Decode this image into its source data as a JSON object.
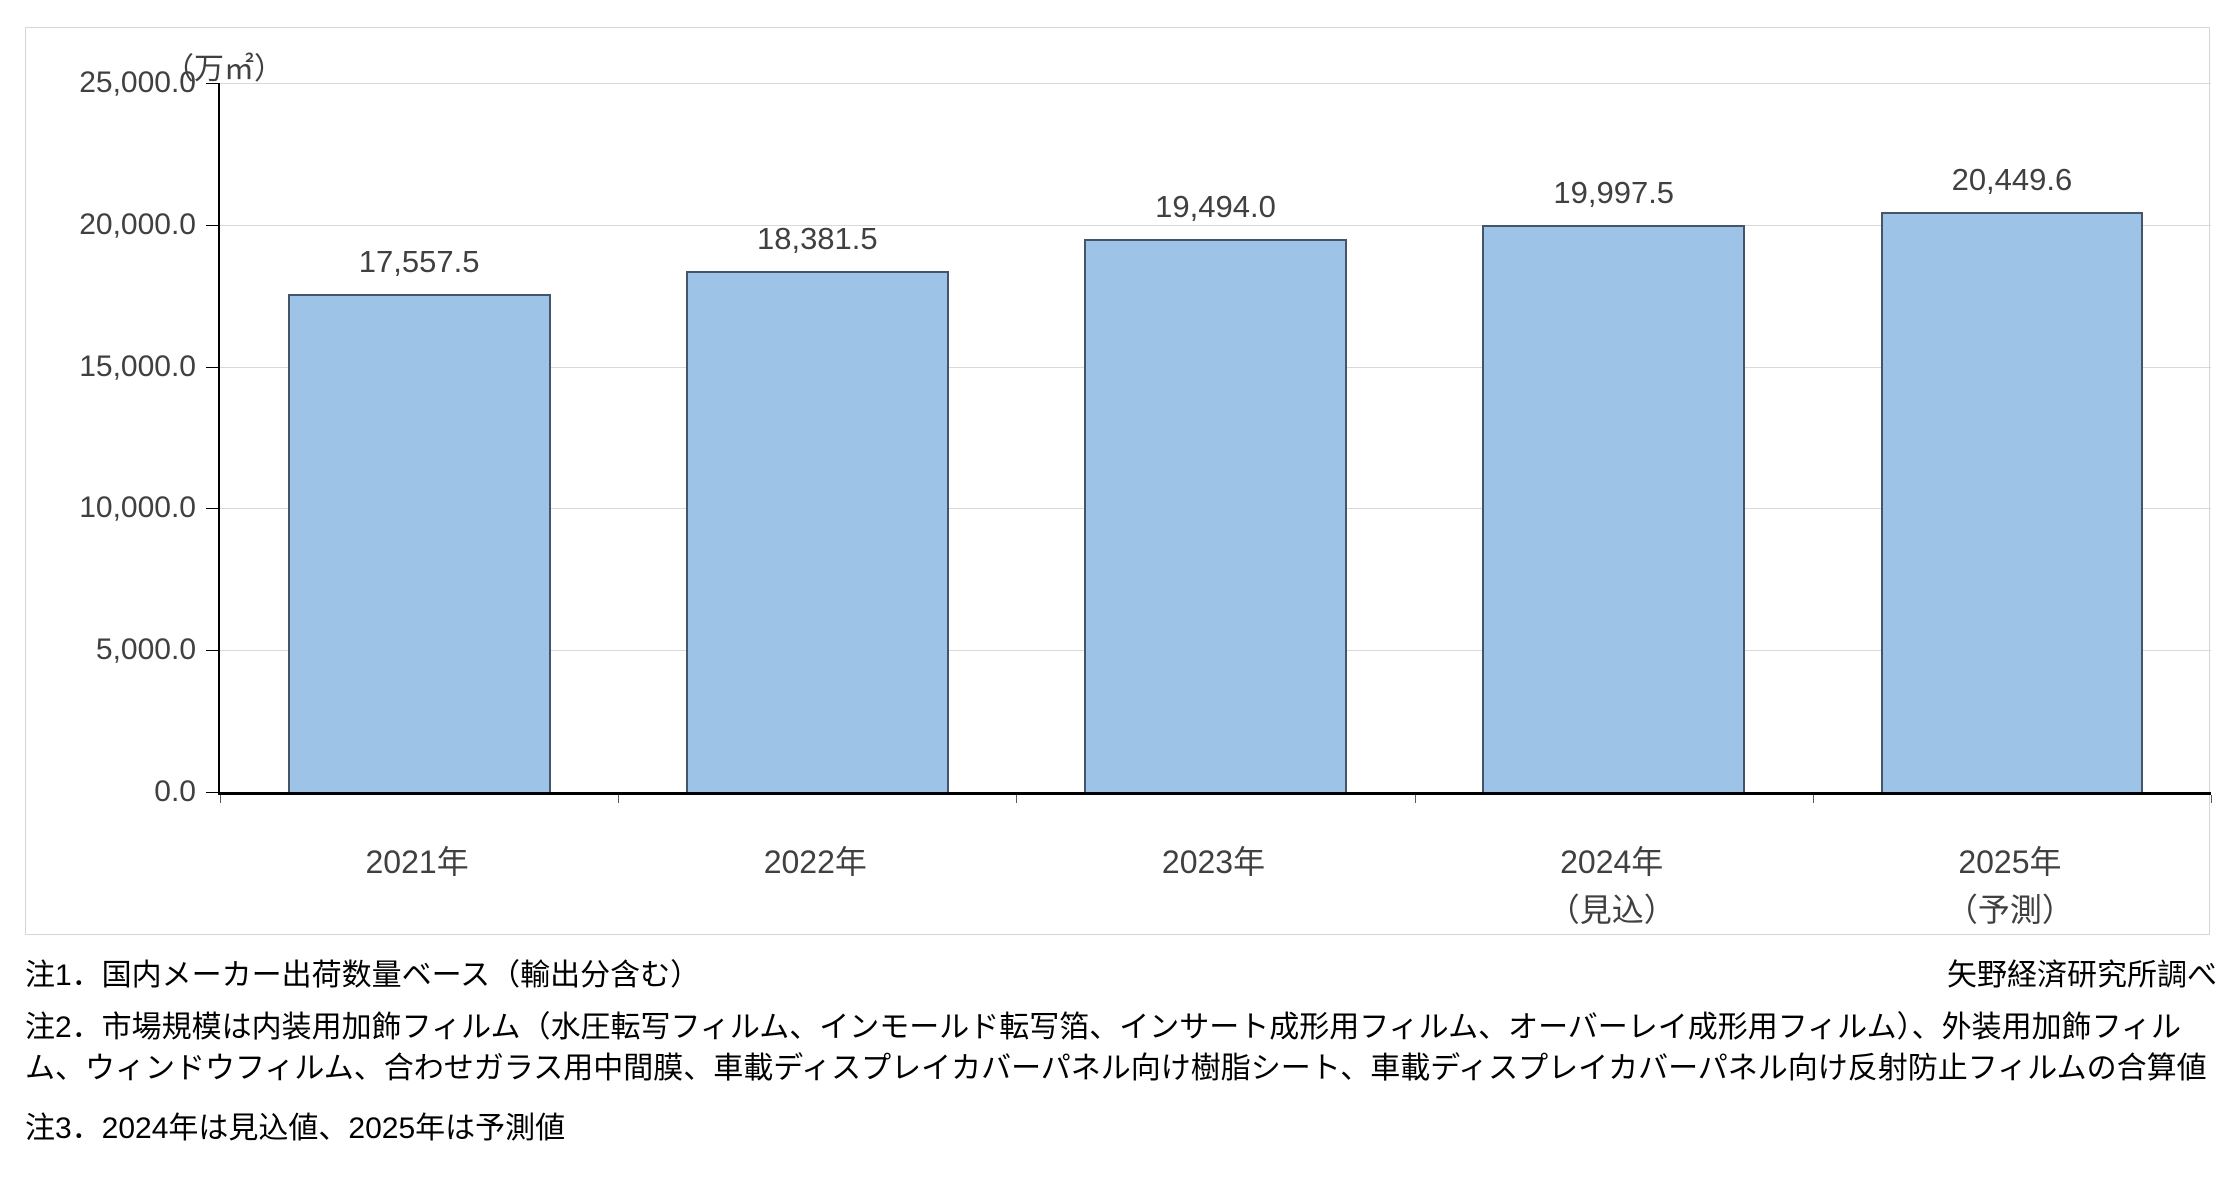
{
  "chart_data": {
    "type": "bar",
    "unit_label": "（万㎡）",
    "categories": [
      "2021年",
      "2022年",
      "2023年",
      "2024年",
      "2025年"
    ],
    "category_sublabels": [
      "",
      "",
      "",
      "（見込）",
      "（予測）"
    ],
    "values": [
      17557.5,
      18381.5,
      19494.0,
      19997.5,
      20449.6
    ],
    "value_labels": [
      "17,557.5",
      "18,381.5",
      "19,494.0",
      "19,997.5",
      "20,449.6"
    ],
    "ylim": [
      0,
      25000
    ],
    "ytick_step": 5000,
    "ytick_labels": [
      "0.0",
      "5,000.0",
      "10,000.0",
      "15,000.0",
      "20,000.0",
      "25,000.0"
    ],
    "grid": true,
    "legend": "none",
    "bar_fill_color": "#9dc3e6",
    "bar_border_color": "#44546a",
    "axis_color": "#000000",
    "gridline_color": "#d9d9d9"
  },
  "notes": {
    "note1": "注1．国内メーカー出荷数量ベース（輸出分含む）",
    "source": "矢野経済研究所調べ",
    "note2": "注2．市場規模は内装用加飾フィルム（水圧転写フィルム、インモールド転写箔、インサート成形用フィルム、オーバーレイ成形用フィルム）、外装用加飾フィルム、ウィンドウフィルム、合わせガラス用中間膜、車載ディスプレイカバーパネル向け樹脂シート、車載ディスプレイカバーパネル向け反射防止フィルムの合算値",
    "note3": "注3．2024年は見込値、2025年は予測値"
  }
}
